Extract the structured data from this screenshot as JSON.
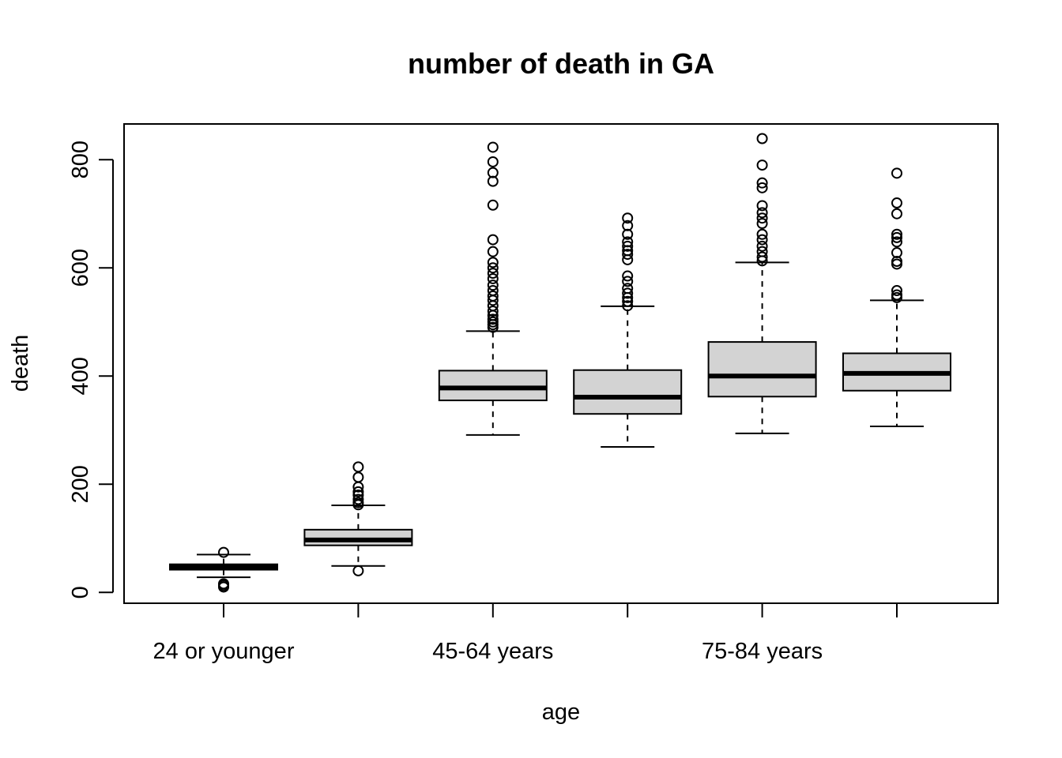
{
  "chart_data": {
    "type": "boxplot",
    "title": "number of death in GA",
    "xlabel": "age",
    "ylabel": "death",
    "ylim": [
      -20,
      866
    ],
    "yticks": [
      0,
      200,
      400,
      600,
      800
    ],
    "ytick_labels": [
      "0",
      "200",
      "400",
      "600",
      "800"
    ],
    "categories": [
      "24 or younger",
      "",
      "45-64 years",
      "",
      "75-84 years",
      ""
    ],
    "box_fill": "#d3d3d3",
    "grid": false,
    "boxes": [
      {
        "whisker_low": 28,
        "q1": 42,
        "median": 47,
        "q3": 52,
        "whisker_high": 70,
        "outliers": [
          10,
          13,
          16,
          74
        ]
      },
      {
        "whisker_low": 49,
        "q1": 87,
        "median": 97,
        "q3": 116,
        "whisker_high": 161,
        "outliers": [
          40,
          162,
          166,
          172,
          180,
          186,
          195,
          213,
          232
        ]
      },
      {
        "whisker_low": 291,
        "q1": 355,
        "median": 378,
        "q3": 410,
        "whisker_high": 483,
        "outliers": [
          490,
          495,
          500,
          505,
          512,
          520,
          530,
          540,
          548,
          558,
          568,
          580,
          590,
          600,
          610,
          630,
          652,
          716,
          760,
          776,
          796,
          823
        ]
      },
      {
        "whisker_low": 269,
        "q1": 330,
        "median": 361,
        "q3": 411,
        "whisker_high": 529,
        "outliers": [
          530,
          538,
          545,
          553,
          562,
          575,
          585,
          615,
          625,
          632,
          640,
          648,
          662,
          678,
          692
        ]
      },
      {
        "whisker_low": 294,
        "q1": 362,
        "median": 400,
        "q3": 463,
        "whisker_high": 610,
        "outliers": [
          613,
          620,
          630,
          640,
          652,
          662,
          682,
          692,
          702,
          715,
          748,
          757,
          790,
          839
        ]
      },
      {
        "whisker_low": 307,
        "q1": 373,
        "median": 405,
        "q3": 442,
        "whisker_high": 540,
        "outliers": [
          545,
          550,
          558,
          607,
          612,
          628,
          648,
          656,
          662,
          700,
          720,
          775
        ]
      }
    ]
  }
}
